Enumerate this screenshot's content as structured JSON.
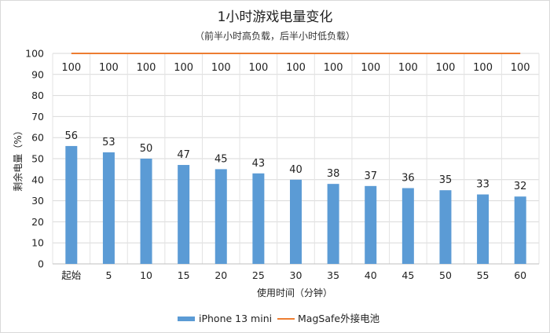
{
  "chart_data": {
    "type": "bar",
    "title": "1小时游戏电量变化",
    "subtitle": "（前半小时高负载，后半小时低负载）",
    "xlabel": "使用时间（分钟）",
    "ylabel": "剩余电量（%）",
    "categories": [
      "起始",
      "5",
      "10",
      "15",
      "20",
      "25",
      "30",
      "35",
      "40",
      "45",
      "50",
      "55",
      "60"
    ],
    "ylim": [
      0,
      100
    ],
    "yticks": [
      0,
      10,
      20,
      30,
      40,
      50,
      60,
      70,
      80,
      90,
      100
    ],
    "grid": true,
    "legend_position": "bottom",
    "series": [
      {
        "name": "iPhone 13 mini",
        "type": "bar",
        "color": "#5b9bd5",
        "values": [
          56,
          53,
          50,
          47,
          45,
          43,
          40,
          38,
          37,
          36,
          35,
          33,
          32
        ]
      },
      {
        "name": "MagSafe外接电池",
        "type": "line",
        "color": "#ed7d31",
        "values": [
          100,
          100,
          100,
          100,
          100,
          100,
          100,
          100,
          100,
          100,
          100,
          100,
          100
        ]
      }
    ]
  }
}
